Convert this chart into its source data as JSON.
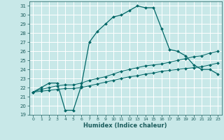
{
  "xlabel": "Humidex (Indice chaleur)",
  "background_color": "#c8e8e8",
  "grid_color": "#ffffff",
  "line_color": "#006666",
  "xlim": [
    -0.5,
    23.5
  ],
  "ylim": [
    19,
    31.5
  ],
  "xticks": [
    0,
    1,
    2,
    3,
    4,
    5,
    6,
    7,
    8,
    9,
    10,
    11,
    12,
    13,
    14,
    15,
    16,
    17,
    18,
    19,
    20,
    21,
    22,
    23
  ],
  "yticks": [
    19,
    20,
    21,
    22,
    23,
    24,
    25,
    26,
    27,
    28,
    29,
    30,
    31
  ],
  "line1_x": [
    0,
    1,
    2,
    3,
    4,
    5,
    6,
    7,
    8,
    9,
    10,
    11,
    12,
    13,
    14,
    15,
    16,
    17,
    18,
    19,
    20,
    21,
    22,
    23
  ],
  "line1_y": [
    21.5,
    22.0,
    22.5,
    22.5,
    19.5,
    19.5,
    22.2,
    27.0,
    28.2,
    29.0,
    29.8,
    30.0,
    30.5,
    31.0,
    30.8,
    30.8,
    28.5,
    26.2,
    26.0,
    25.5,
    24.5,
    24.0,
    24.0,
    23.5
  ],
  "line2_x": [
    0,
    1,
    2,
    3,
    4,
    5,
    6,
    7,
    8,
    9,
    10,
    11,
    12,
    13,
    14,
    15,
    16,
    17,
    18,
    19,
    20,
    21,
    22,
    23
  ],
  "line2_y": [
    21.5,
    21.8,
    22.0,
    22.2,
    22.3,
    22.3,
    22.5,
    22.8,
    23.0,
    23.2,
    23.5,
    23.8,
    24.0,
    24.2,
    24.4,
    24.5,
    24.6,
    24.8,
    25.0,
    25.2,
    25.4,
    25.5,
    25.8,
    26.0
  ],
  "line3_x": [
    0,
    1,
    2,
    3,
    4,
    5,
    6,
    7,
    8,
    9,
    10,
    11,
    12,
    13,
    14,
    15,
    16,
    17,
    18,
    19,
    20,
    21,
    22,
    23
  ],
  "line3_y": [
    21.5,
    21.6,
    21.7,
    21.8,
    21.9,
    21.9,
    22.0,
    22.2,
    22.4,
    22.6,
    22.8,
    23.0,
    23.2,
    23.3,
    23.5,
    23.6,
    23.8,
    23.9,
    24.0,
    24.1,
    24.2,
    24.3,
    24.5,
    24.7
  ]
}
